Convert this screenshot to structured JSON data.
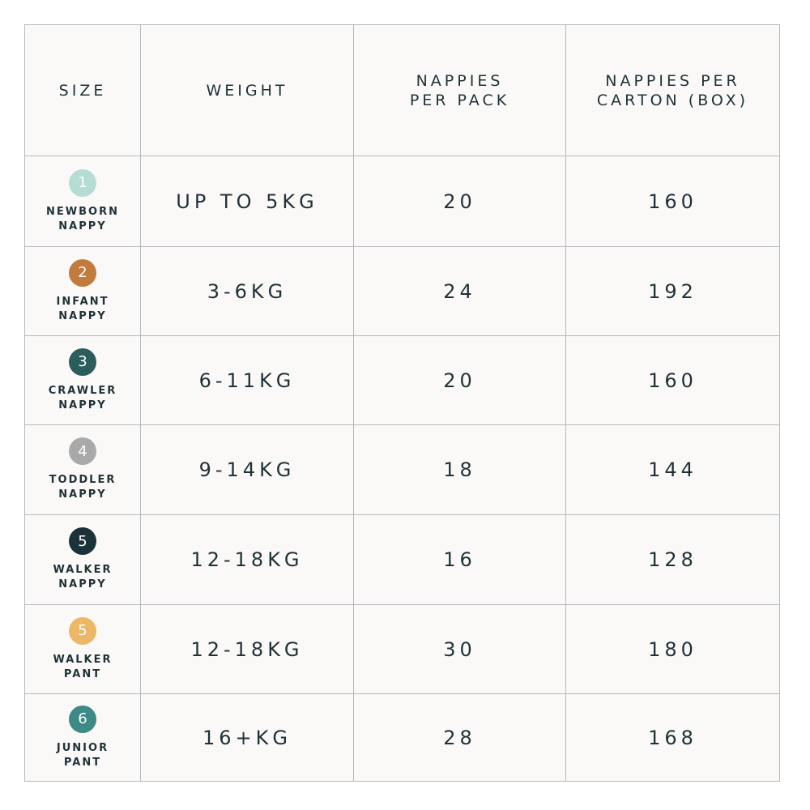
{
  "table": {
    "header": [
      [
        "SIZE"
      ],
      [
        "WEIGHT"
      ],
      [
        "NAPPIES",
        "PER PACK"
      ],
      [
        "NAPPIES PER",
        "CARTON (BOX)"
      ]
    ],
    "rows": [
      {
        "badge": "1",
        "badge_color": "#b6dcd6",
        "name": [
          "NEWBORN",
          "NAPPY"
        ],
        "weight": "UP TO 5KG",
        "per_pack": 20,
        "per_carton": 160
      },
      {
        "badge": "2",
        "badge_color": "#c17b3d",
        "name": [
          "INFANT",
          "NAPPY"
        ],
        "weight": "3-6KG",
        "per_pack": 24,
        "per_carton": 192
      },
      {
        "badge": "3",
        "badge_color": "#2b5d5d",
        "name": [
          "CRAWLER",
          "NAPPY"
        ],
        "weight": "6-11KG",
        "per_pack": 20,
        "per_carton": 160
      },
      {
        "badge": "4",
        "badge_color": "#a9a9a9",
        "name": [
          "TODDLER",
          "NAPPY"
        ],
        "weight": "9-14KG",
        "per_pack": 18,
        "per_carton": 144
      },
      {
        "badge": "5",
        "badge_color": "#1b3238",
        "name": [
          "WALKER",
          "NAPPY"
        ],
        "weight": "12-18KG",
        "per_pack": 16,
        "per_carton": 128
      },
      {
        "badge": "5",
        "badge_color": "#ecb766",
        "name": [
          "WALKER",
          "PANT"
        ],
        "weight": "12-18KG",
        "per_pack": 30,
        "per_carton": 180
      },
      {
        "badge": "6",
        "badge_color": "#3e8a86",
        "name": [
          "JUNIOR",
          "PANT"
        ],
        "weight": "16+KG",
        "per_pack": 28,
        "per_carton": 168
      }
    ]
  }
}
